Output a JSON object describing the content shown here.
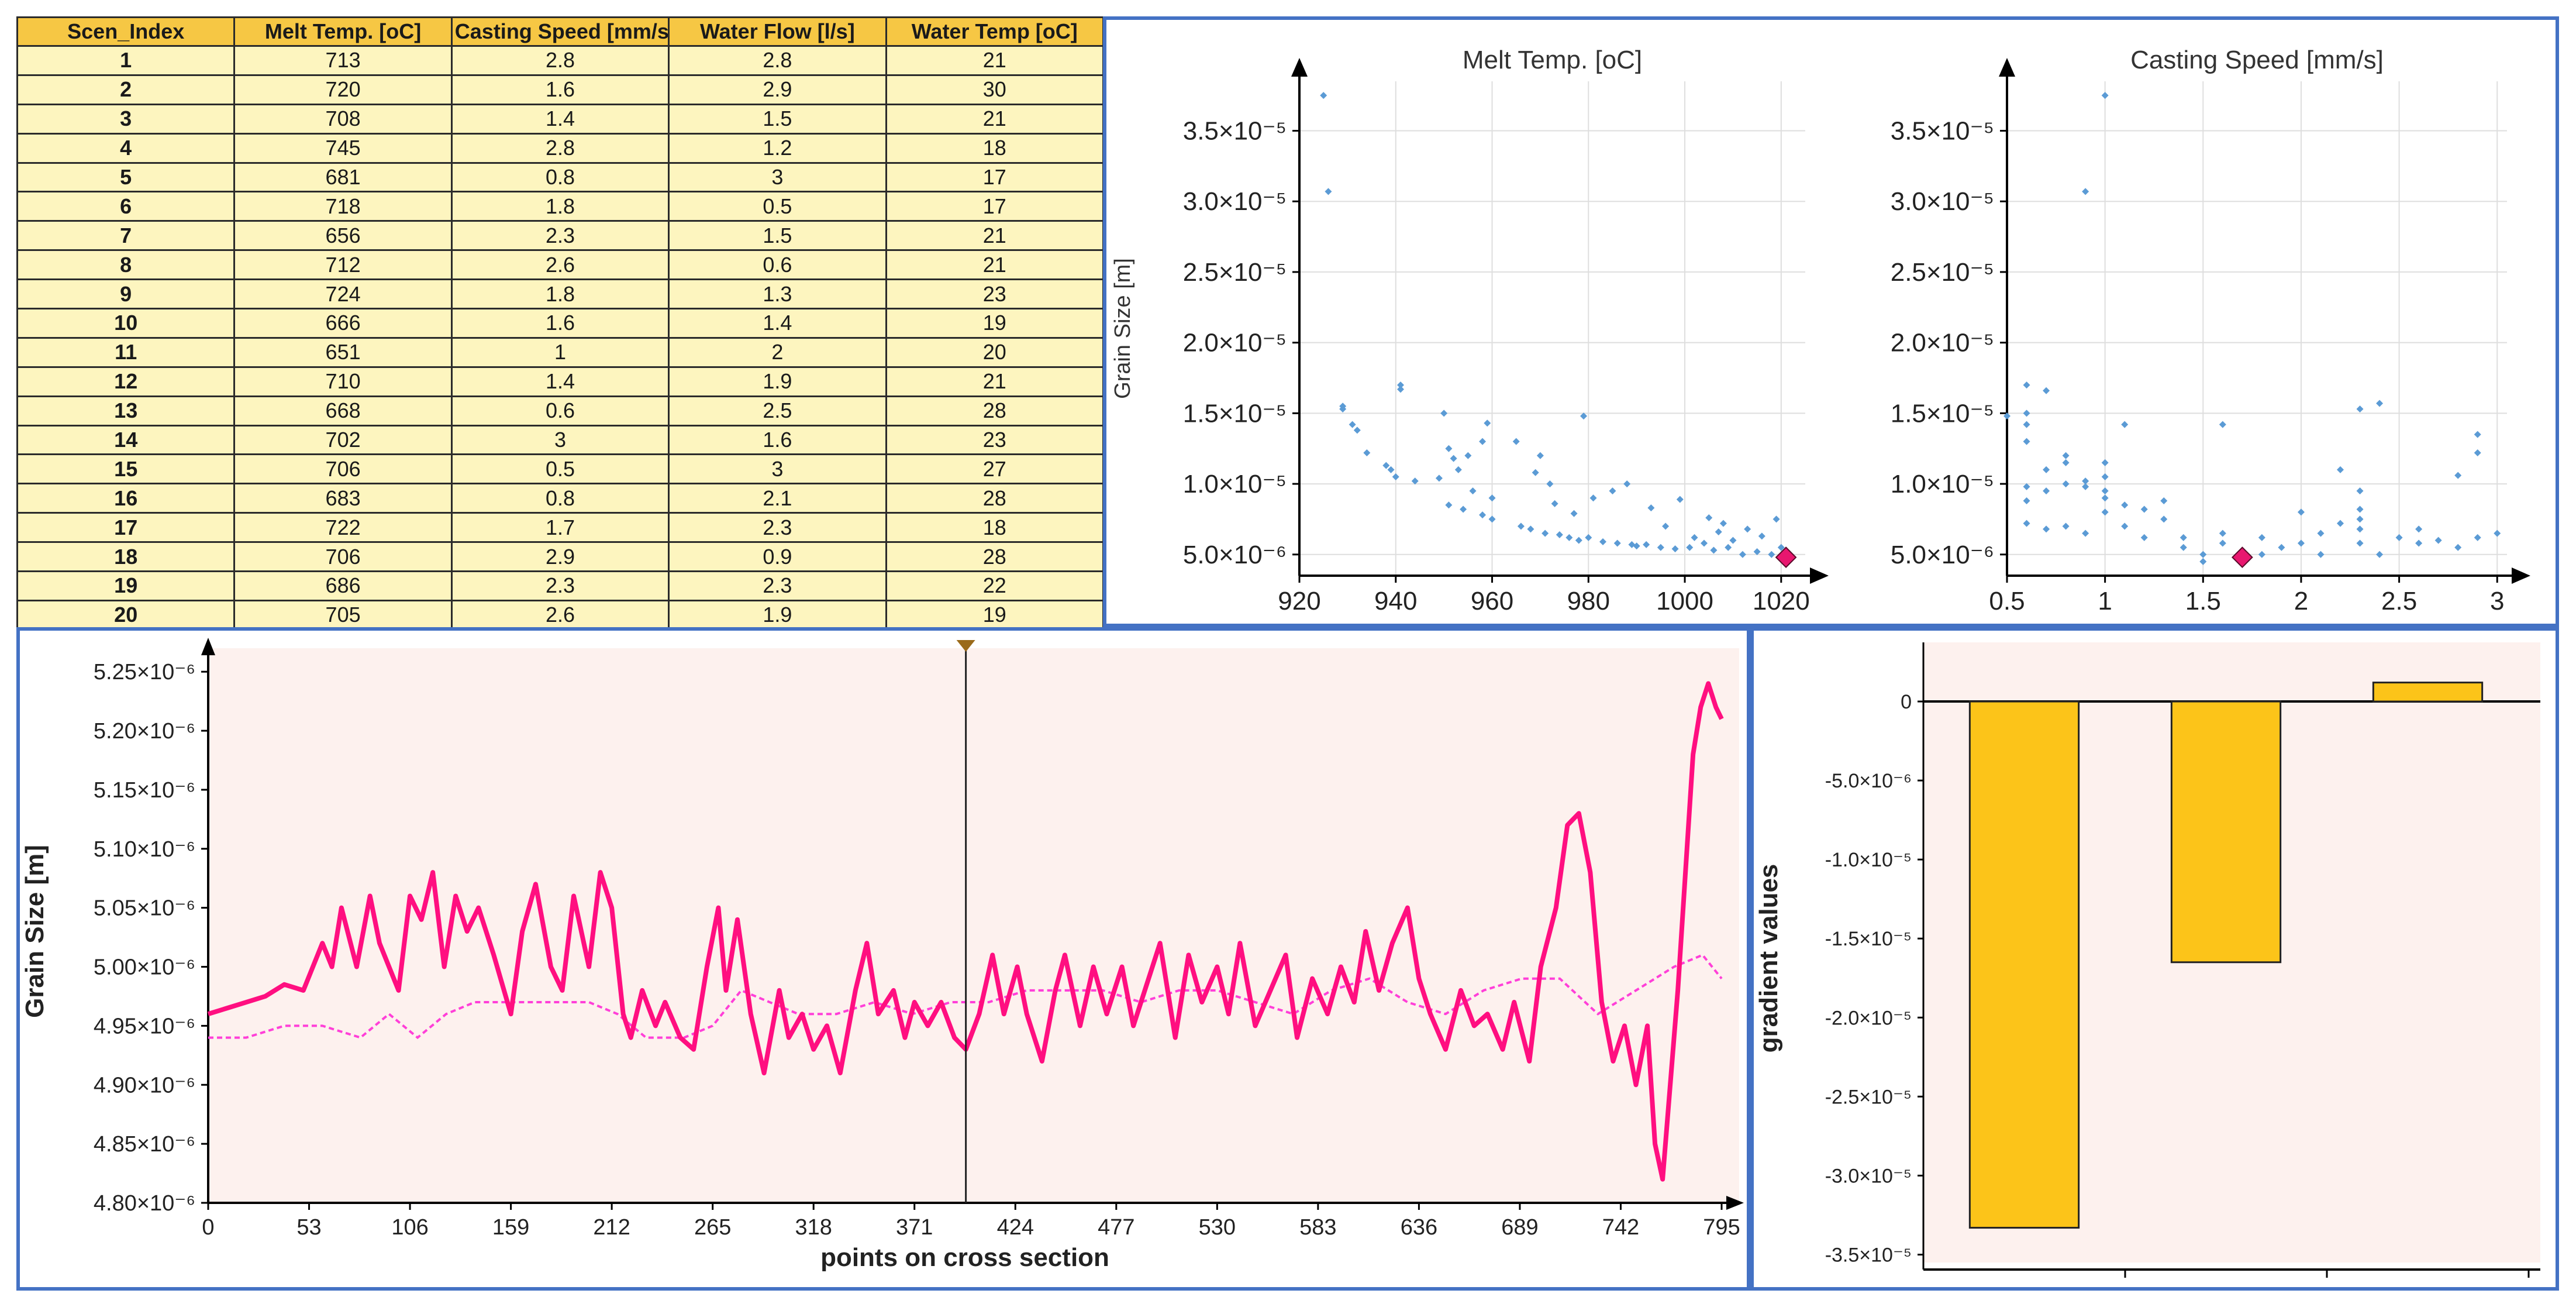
{
  "table": {
    "headers": [
      "Scen_Index",
      "Melt Temp. [oC]",
      "Casting Speed [mm/s]",
      "Water Flow [l/s]",
      "Water Temp [oC]"
    ],
    "rows": [
      [
        "1",
        "713",
        "2.8",
        "2.8",
        "21"
      ],
      [
        "2",
        "720",
        "1.6",
        "2.9",
        "30"
      ],
      [
        "3",
        "708",
        "1.4",
        "1.5",
        "21"
      ],
      [
        "4",
        "745",
        "2.8",
        "1.2",
        "18"
      ],
      [
        "5",
        "681",
        "0.8",
        "3",
        "17"
      ],
      [
        "6",
        "718",
        "1.8",
        "0.5",
        "17"
      ],
      [
        "7",
        "656",
        "2.3",
        "1.5",
        "21"
      ],
      [
        "8",
        "712",
        "2.6",
        "0.6",
        "21"
      ],
      [
        "9",
        "724",
        "1.8",
        "1.3",
        "23"
      ],
      [
        "10",
        "666",
        "1.6",
        "1.4",
        "19"
      ],
      [
        "11",
        "651",
        "1",
        "2",
        "20"
      ],
      [
        "12",
        "710",
        "1.4",
        "1.9",
        "21"
      ],
      [
        "13",
        "668",
        "0.6",
        "2.5",
        "28"
      ],
      [
        "14",
        "702",
        "3",
        "1.6",
        "23"
      ],
      [
        "15",
        "706",
        "0.5",
        "3",
        "27"
      ],
      [
        "16",
        "683",
        "0.8",
        "2.1",
        "28"
      ],
      [
        "17",
        "722",
        "1.7",
        "2.3",
        "18"
      ],
      [
        "18",
        "706",
        "2.9",
        "0.9",
        "28"
      ],
      [
        "19",
        "686",
        "2.3",
        "2.3",
        "22"
      ],
      [
        "20",
        "705",
        "2.6",
        "1.9",
        "19"
      ]
    ]
  },
  "colors": {
    "header_bg": "#f6c744",
    "cell_bg": "#fdf5bf",
    "panel_border": "#4472c4",
    "scatter_point": "#5b9bd5",
    "highlight": "#e8176f",
    "line": "#ff0f80",
    "line_dashed": "#ff3fd8",
    "plot_bg": "#fdf1ee",
    "bar_fill": "#fcc419"
  },
  "chart_data": [
    {
      "type": "scatter",
      "title": "Melt Temp. [oC]",
      "xlabel": "",
      "ylabel": "Grain Size [m]",
      "xlim": [
        920,
        1025
      ],
      "ylim": [
        3.5e-06,
        3.85e-05
      ],
      "xticks": [
        920,
        940,
        960,
        980,
        1000,
        1020
      ],
      "xtick_labels": [
        "920",
        "940",
        "960",
        "980",
        "1000",
        "1020"
      ],
      "yticks": [
        5e-06,
        1e-05,
        1.5e-05,
        2e-05,
        2.5e-05,
        3e-05,
        3.5e-05
      ],
      "ytick_labels": [
        "5.0×10⁻⁶",
        "1.0×10⁻⁵",
        "1.5×10⁻⁵",
        "2.0×10⁻⁵",
        "2.5×10⁻⁵",
        "3.0×10⁻⁵",
        "3.5×10⁻⁵"
      ],
      "grid": true,
      "points": [
        [
          925,
          3.75e-05
        ],
        [
          926,
          3.07e-05
        ],
        [
          929,
          1.55e-05
        ],
        [
          929,
          1.53e-05
        ],
        [
          931,
          1.42e-05
        ],
        [
          932,
          1.38e-05
        ],
        [
          934,
          1.22e-05
        ],
        [
          938,
          1.13e-05
        ],
        [
          939,
          1.1e-05
        ],
        [
          940,
          1.05e-05
        ],
        [
          941,
          1.7e-05
        ],
        [
          941,
          1.67e-05
        ],
        [
          944,
          1.02e-05
        ],
        [
          949,
          1.04e-05
        ],
        [
          950,
          1.5e-05
        ],
        [
          951,
          1.25e-05
        ],
        [
          951,
          8.5e-06
        ],
        [
          952,
          1.18e-05
        ],
        [
          953,
          1.1e-05
        ],
        [
          954,
          8.2e-06
        ],
        [
          955,
          1.2e-05
        ],
        [
          956,
          9.5e-06
        ],
        [
          958,
          1.3e-05
        ],
        [
          958,
          7.8e-06
        ],
        [
          959,
          1.43e-05
        ],
        [
          960,
          7.5e-06
        ],
        [
          960,
          9e-06
        ],
        [
          965,
          1.3e-05
        ],
        [
          966,
          7e-06
        ],
        [
          968,
          6.8e-06
        ],
        [
          969,
          1.08e-05
        ],
        [
          970,
          1.2e-05
        ],
        [
          971,
          6.5e-06
        ],
        [
          972,
          1e-05
        ],
        [
          973,
          8.6e-06
        ],
        [
          974,
          6.4e-06
        ],
        [
          976,
          6.2e-06
        ],
        [
          977,
          7.9e-06
        ],
        [
          978,
          6e-06
        ],
        [
          979,
          1.48e-05
        ],
        [
          980,
          6.2e-06
        ],
        [
          981,
          9e-06
        ],
        [
          983,
          5.9e-06
        ],
        [
          985,
          9.5e-06
        ],
        [
          986,
          5.8e-06
        ],
        [
          988,
          1e-05
        ],
        [
          989,
          5.7e-06
        ],
        [
          990,
          5.6e-06
        ],
        [
          992,
          5.7e-06
        ],
        [
          993,
          8.3e-06
        ],
        [
          995,
          5.5e-06
        ],
        [
          996,
          7e-06
        ],
        [
          998,
          5.4e-06
        ],
        [
          999,
          8.9e-06
        ],
        [
          1001,
          5.5e-06
        ],
        [
          1002,
          6.2e-06
        ],
        [
          1004,
          5.8e-06
        ],
        [
          1005,
          7.6e-06
        ],
        [
          1006,
          5.3e-06
        ],
        [
          1007,
          6.6e-06
        ],
        [
          1008,
          7.2e-06
        ],
        [
          1009,
          5.5e-06
        ],
        [
          1010,
          6e-06
        ],
        [
          1012,
          5e-06
        ],
        [
          1013,
          6.8e-06
        ],
        [
          1015,
          5.2e-06
        ],
        [
          1016,
          6.3e-06
        ],
        [
          1018,
          5e-06
        ],
        [
          1019,
          7.5e-06
        ],
        [
          1020,
          5.5e-06
        ]
      ],
      "highlight": [
        1021,
        4.8e-06
      ]
    },
    {
      "type": "scatter",
      "title": "Casting Speed [mm/s]",
      "xlabel": "",
      "ylabel": "",
      "xlim": [
        0.5,
        3.05
      ],
      "ylim": [
        3.5e-06,
        3.85e-05
      ],
      "xticks": [
        0.5,
        1,
        1.5,
        2,
        2.5,
        3
      ],
      "xtick_labels": [
        "0.5",
        "1",
        "1.5",
        "2",
        "2.5",
        "3"
      ],
      "yticks": [
        5e-06,
        1e-05,
        1.5e-05,
        2e-05,
        2.5e-05,
        3e-05,
        3.5e-05
      ],
      "ytick_labels": [
        "5.0×10⁻⁶",
        "1.0×10⁻⁵",
        "1.5×10⁻⁵",
        "2.0×10⁻⁵",
        "2.5×10⁻⁵",
        "3.0×10⁻⁵",
        "3.5×10⁻⁵"
      ],
      "grid": true,
      "points": [
        [
          0.5,
          1.48e-05
        ],
        [
          0.6,
          1.7e-05
        ],
        [
          0.6,
          1.5e-05
        ],
        [
          0.6,
          1.42e-05
        ],
        [
          0.6,
          1.3e-05
        ],
        [
          0.6,
          9.8e-06
        ],
        [
          0.6,
          8.8e-06
        ],
        [
          0.6,
          7.2e-06
        ],
        [
          0.7,
          1.66e-05
        ],
        [
          0.7,
          1.1e-05
        ],
        [
          0.7,
          9.5e-06
        ],
        [
          0.7,
          6.8e-06
        ],
        [
          0.8,
          1.2e-05
        ],
        [
          0.8,
          1.15e-05
        ],
        [
          0.8,
          1e-05
        ],
        [
          0.8,
          7e-06
        ],
        [
          0.9,
          3.07e-05
        ],
        [
          0.9,
          1.02e-05
        ],
        [
          0.9,
          9.8e-06
        ],
        [
          0.9,
          6.5e-06
        ],
        [
          1.0,
          3.75e-05
        ],
        [
          1.0,
          1.15e-05
        ],
        [
          1.0,
          1.05e-05
        ],
        [
          1.0,
          9.5e-06
        ],
        [
          1.0,
          9e-06
        ],
        [
          1.0,
          8e-06
        ],
        [
          1.1,
          1.42e-05
        ],
        [
          1.1,
          8.5e-06
        ],
        [
          1.1,
          7e-06
        ],
        [
          1.2,
          8.2e-06
        ],
        [
          1.2,
          6.2e-06
        ],
        [
          1.3,
          8.8e-06
        ],
        [
          1.3,
          7.5e-06
        ],
        [
          1.4,
          6.2e-06
        ],
        [
          1.4,
          5.5e-06
        ],
        [
          1.5,
          5e-06
        ],
        [
          1.5,
          4.5e-06
        ],
        [
          1.6,
          1.42e-05
        ],
        [
          1.6,
          6.5e-06
        ],
        [
          1.6,
          5.8e-06
        ],
        [
          1.8,
          6.2e-06
        ],
        [
          1.8,
          5e-06
        ],
        [
          1.9,
          5.5e-06
        ],
        [
          2.0,
          8e-06
        ],
        [
          2.0,
          5.8e-06
        ],
        [
          2.1,
          6.5e-06
        ],
        [
          2.1,
          5e-06
        ],
        [
          2.2,
          1.1e-05
        ],
        [
          2.2,
          7.2e-06
        ],
        [
          2.3,
          1.53e-05
        ],
        [
          2.3,
          9.5e-06
        ],
        [
          2.3,
          8.2e-06
        ],
        [
          2.3,
          7.5e-06
        ],
        [
          2.3,
          6.8e-06
        ],
        [
          2.3,
          5.8e-06
        ],
        [
          2.4,
          1.57e-05
        ],
        [
          2.4,
          5e-06
        ],
        [
          2.5,
          6.2e-06
        ],
        [
          2.6,
          6.8e-06
        ],
        [
          2.6,
          5.8e-06
        ],
        [
          2.7,
          6e-06
        ],
        [
          2.8,
          1.06e-05
        ],
        [
          2.8,
          5.5e-06
        ],
        [
          2.9,
          1.35e-05
        ],
        [
          2.9,
          1.22e-05
        ],
        [
          2.9,
          6.2e-06
        ],
        [
          3.0,
          6.5e-06
        ]
      ],
      "highlight": [
        1.7,
        4.8e-06
      ]
    },
    {
      "type": "line",
      "title": "",
      "xlabel": "points on cross section",
      "ylabel": "Grain Size [m]",
      "xlim": [
        0,
        795
      ],
      "ylim": [
        4.8e-06,
        5.26e-06
      ],
      "xticks": [
        0,
        53,
        106,
        159,
        212,
        265,
        318,
        371,
        424,
        477,
        530,
        583,
        636,
        689,
        742,
        795
      ],
      "yticks": [
        4.8e-06,
        4.85e-06,
        4.9e-06,
        4.95e-06,
        5e-06,
        5.05e-06,
        5.1e-06,
        5.15e-06,
        5.2e-06,
        5.25e-06
      ],
      "ytick_labels": [
        "4.80×10⁻⁶",
        "4.85×10⁻⁶",
        "4.90×10⁻⁶",
        "4.95×10⁻⁶",
        "5.00×10⁻⁶",
        "5.05×10⁻⁶",
        "5.10×10⁻⁶",
        "5.15×10⁻⁶",
        "5.20×10⁻⁶",
        "5.25×10⁻⁶"
      ],
      "marker_x": 398,
      "series": [
        {
          "style": "solid",
          "x": [
            0,
            10,
            20,
            30,
            40,
            50,
            60,
            65,
            70,
            78,
            85,
            90,
            100,
            106,
            112,
            118,
            124,
            130,
            136,
            142,
            150,
            159,
            165,
            172,
            180,
            186,
            192,
            200,
            206,
            212,
            218,
            222,
            228,
            235,
            240,
            248,
            255,
            262,
            268,
            272,
            278,
            285,
            292,
            300,
            305,
            312,
            318,
            325,
            332,
            340,
            346,
            352,
            360,
            366,
            371,
            378,
            385,
            392,
            398,
            405,
            412,
            418,
            425,
            430,
            438,
            445,
            450,
            458,
            465,
            472,
            480,
            486,
            492,
            500,
            508,
            515,
            522,
            530,
            536,
            542,
            550,
            558,
            566,
            572,
            580,
            588,
            595,
            602,
            608,
            615,
            622,
            630,
            636,
            642,
            650,
            658,
            665,
            672,
            680,
            686,
            694,
            700,
            708,
            714,
            720,
            726,
            732,
            738,
            744,
            750,
            756,
            760,
            764,
            768,
            772,
            776,
            780,
            784,
            788,
            792,
            795
          ],
          "y": [
            4.96e-06,
            4.965e-06,
            4.97e-06,
            4.975e-06,
            4.985e-06,
            4.98e-06,
            5.02e-06,
            5e-06,
            5.05e-06,
            5e-06,
            5.06e-06,
            5.02e-06,
            4.98e-06,
            5.06e-06,
            5.04e-06,
            5.08e-06,
            5e-06,
            5.06e-06,
            5.03e-06,
            5.05e-06,
            5.01e-06,
            4.96e-06,
            5.03e-06,
            5.07e-06,
            5e-06,
            4.98e-06,
            5.06e-06,
            5e-06,
            5.08e-06,
            5.05e-06,
            4.96e-06,
            4.94e-06,
            4.98e-06,
            4.95e-06,
            4.97e-06,
            4.94e-06,
            4.93e-06,
            5e-06,
            5.05e-06,
            4.98e-06,
            5.04e-06,
            4.96e-06,
            4.91e-06,
            4.98e-06,
            4.94e-06,
            4.96e-06,
            4.93e-06,
            4.95e-06,
            4.91e-06,
            4.98e-06,
            5.02e-06,
            4.96e-06,
            4.98e-06,
            4.94e-06,
            4.97e-06,
            4.95e-06,
            4.97e-06,
            4.94e-06,
            4.93e-06,
            4.96e-06,
            5.01e-06,
            4.96e-06,
            5e-06,
            4.96e-06,
            4.92e-06,
            4.98e-06,
            5.01e-06,
            4.95e-06,
            5e-06,
            4.96e-06,
            5e-06,
            4.95e-06,
            4.98e-06,
            5.02e-06,
            4.94e-06,
            5.01e-06,
            4.97e-06,
            5e-06,
            4.96e-06,
            5.02e-06,
            4.95e-06,
            4.98e-06,
            5.01e-06,
            4.94e-06,
            4.99e-06,
            4.96e-06,
            5e-06,
            4.97e-06,
            5.03e-06,
            4.98e-06,
            5.02e-06,
            5.05e-06,
            4.99e-06,
            4.96e-06,
            4.93e-06,
            4.98e-06,
            4.95e-06,
            4.96e-06,
            4.93e-06,
            4.97e-06,
            4.92e-06,
            5e-06,
            5.05e-06,
            5.12e-06,
            5.13e-06,
            5.08e-06,
            4.97e-06,
            4.92e-06,
            4.95e-06,
            4.9e-06,
            4.95e-06,
            4.85e-06,
            4.82e-06,
            4.9e-06,
            4.98e-06,
            5.08e-06,
            5.18e-06,
            5.22e-06,
            5.24e-06,
            5.22e-06,
            5.21e-06
          ]
        },
        {
          "style": "dashed",
          "x": [
            0,
            20,
            40,
            60,
            80,
            95,
            110,
            125,
            140,
            160,
            180,
            200,
            215,
            230,
            250,
            265,
            280,
            295,
            310,
            330,
            350,
            370,
            390,
            410,
            430,
            450,
            470,
            490,
            510,
            530,
            550,
            570,
            590,
            610,
            630,
            650,
            670,
            690,
            710,
            730,
            750,
            770,
            785,
            795
          ],
          "y": [
            4.94e-06,
            4.94e-06,
            4.95e-06,
            4.95e-06,
            4.94e-06,
            4.96e-06,
            4.94e-06,
            4.96e-06,
            4.97e-06,
            4.97e-06,
            4.97e-06,
            4.97e-06,
            4.96e-06,
            4.94e-06,
            4.94e-06,
            4.95e-06,
            4.98e-06,
            4.97e-06,
            4.96e-06,
            4.96e-06,
            4.97e-06,
            4.96e-06,
            4.97e-06,
            4.97e-06,
            4.98e-06,
            4.98e-06,
            4.98e-06,
            4.97e-06,
            4.98e-06,
            4.98e-06,
            4.97e-06,
            4.96e-06,
            4.98e-06,
            4.99e-06,
            4.97e-06,
            4.96e-06,
            4.98e-06,
            4.99e-06,
            4.99e-06,
            4.96e-06,
            4.98e-06,
            5e-06,
            5.01e-06,
            4.99e-06
          ]
        }
      ]
    },
    {
      "type": "bar",
      "title": "",
      "xlabel": "",
      "ylabel": "gradient values",
      "categories": [
        "",
        "",
        ""
      ],
      "values": [
        -3.33e-05,
        -1.65e-05,
        1.2e-06
      ],
      "ylim": [
        -3.55e-05,
        3e-06
      ],
      "yticks": [
        0,
        -5e-06,
        -1e-05,
        -1.5e-05,
        -2e-05,
        -2.5e-05,
        -3e-05,
        -3.5e-05
      ],
      "ytick_labels": [
        "0",
        "-5.0×10⁻⁶",
        "-1.0×10⁻⁵",
        "-1.5×10⁻⁵",
        "-2.0×10⁻⁵",
        "-2.5×10⁻⁵",
        "-3.0×10⁻⁵",
        "-3.5×10⁻⁵"
      ]
    }
  ]
}
